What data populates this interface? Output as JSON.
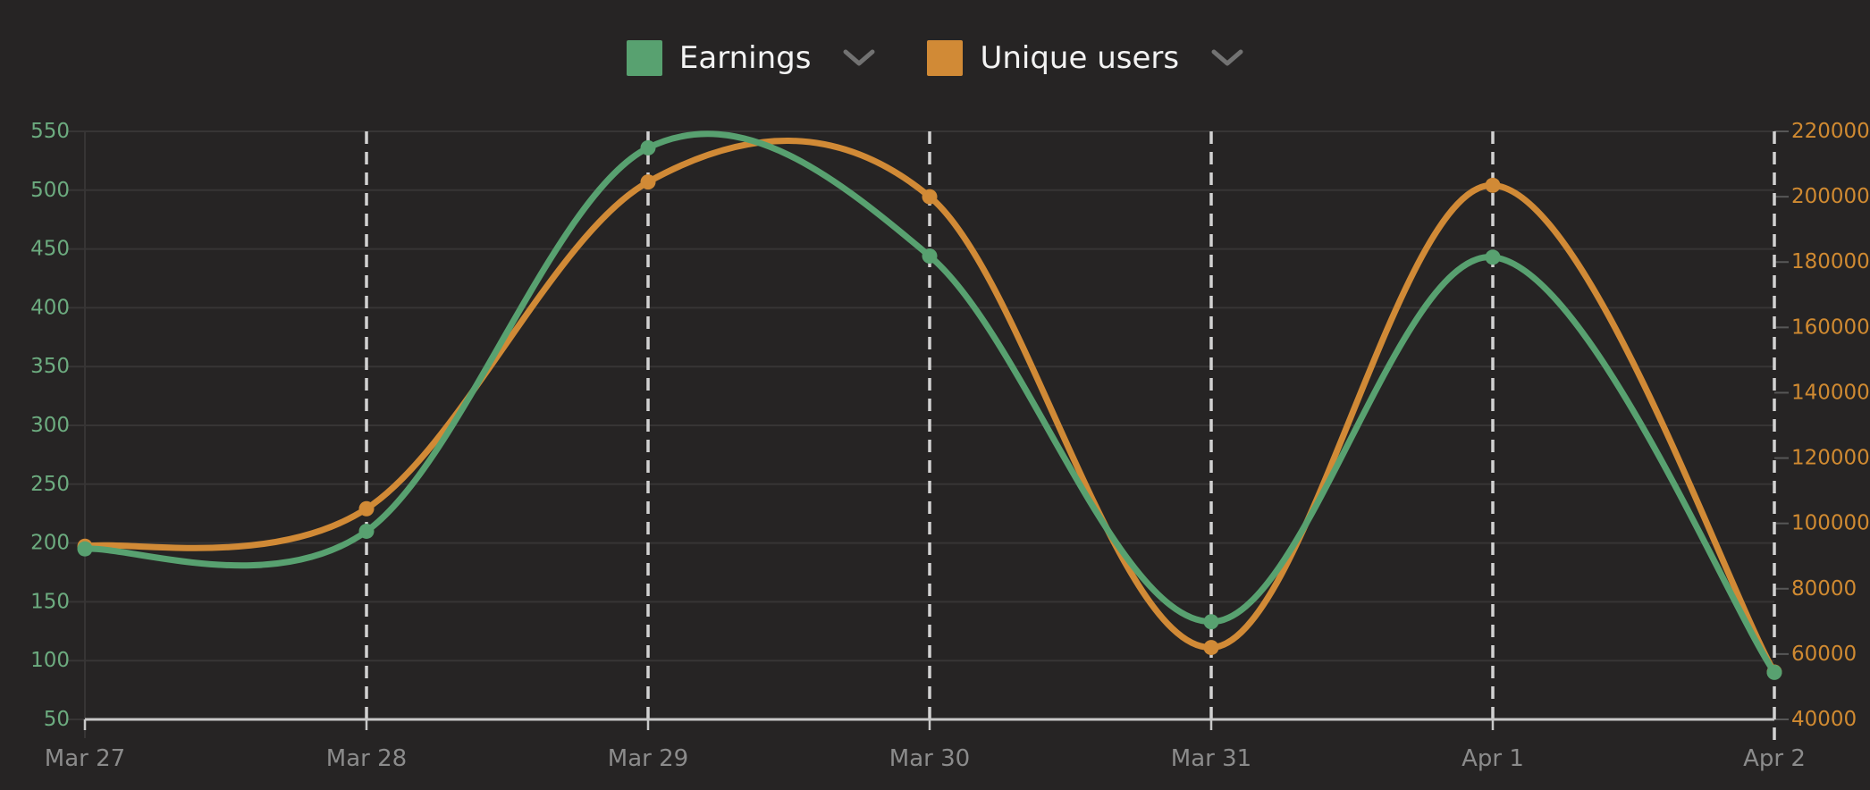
{
  "chart_data": {
    "type": "line",
    "title": "",
    "x_categories": [
      "Mar 27",
      "Mar 28",
      "Mar 29",
      "Mar 30",
      "Mar 31",
      "Apr 1",
      "Apr 2"
    ],
    "series": [
      {
        "name": "Earnings",
        "axis": "left",
        "color": "#58a170",
        "values": [
          195,
          210,
          536,
          444,
          133,
          443,
          90
        ]
      },
      {
        "name": "Unique users",
        "axis": "right",
        "color": "#d18a36",
        "values": [
          93000,
          104500,
          204500,
          200000,
          62000,
          203500,
          54500
        ]
      }
    ],
    "axes": {
      "left": {
        "min": 50,
        "max": 550,
        "step": 50,
        "ticks": [
          50,
          100,
          150,
          200,
          250,
          300,
          350,
          400,
          450,
          500,
          550
        ],
        "label_color": "#6cab7f"
      },
      "right": {
        "min": 40000,
        "max": 220000,
        "step": 20000,
        "ticks": [
          40000,
          60000,
          80000,
          100000,
          120000,
          140000,
          160000,
          180000,
          200000,
          220000
        ],
        "label_color": "#d08a31"
      }
    },
    "legend_position": "top",
    "grid": {
      "horizontal_faint": true,
      "vertical_dashed_on_categories": true
    },
    "smoothing": "catmull-rom",
    "point_markers": true
  },
  "legend": {
    "items": [
      {
        "label": "Earnings",
        "chevron": "chevron-down"
      },
      {
        "label": "Unique users",
        "chevron": "chevron-down"
      }
    ]
  },
  "colors": {
    "background": "#262424",
    "axis_line": "#c8c8c8",
    "dashed_gridline": "#d2d2d2",
    "faint_gridline": "#373535",
    "right_tick_mark": "#575757",
    "x_label": "#8b8b8b",
    "legend_text": "#f3f3f3",
    "chevron": "#727272"
  }
}
